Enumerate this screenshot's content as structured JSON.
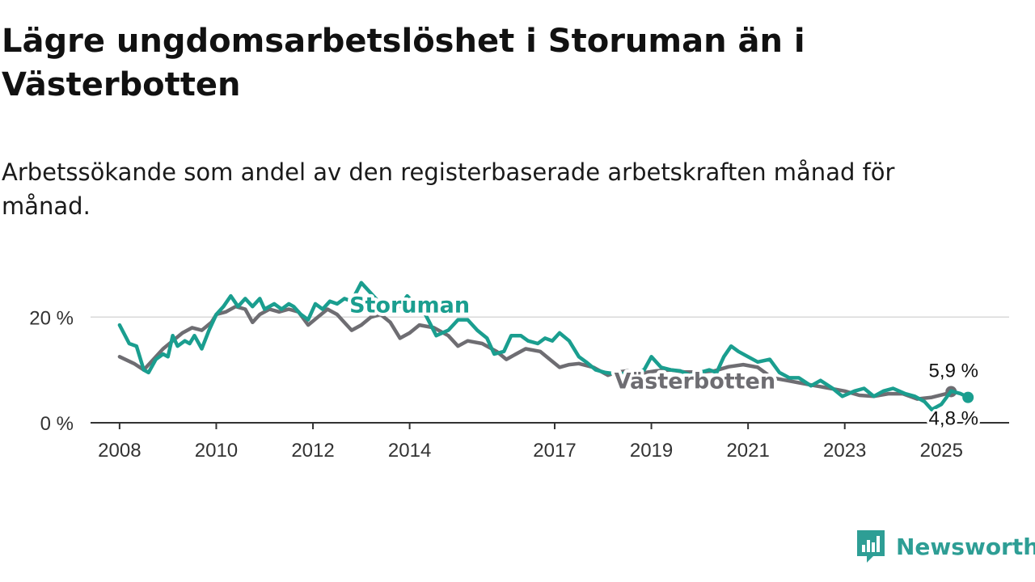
{
  "title": "Lägre ungdomsarbetslöshet i Storuman än i Västerbotten",
  "subtitle": "Arbetssökande som andel av den registerbaserade arbetskraften månad för månad.",
  "brand": {
    "name": "Newsworthy",
    "icon": "newsworthy-logo-icon",
    "color": "#2e9e95"
  },
  "chart_data": {
    "type": "line",
    "title": "Lägre ungdomsarbetslöshet i Storuman än i Västerbotten",
    "subtitle": "Arbetssökande som andel av den registerbaserade arbetskraften månad för månad.",
    "x_ticks": [
      {
        "year": 2008,
        "label": "2008"
      },
      {
        "year": 2010,
        "label": "2010"
      },
      {
        "year": 2012,
        "label": "2012"
      },
      {
        "year": 2014,
        "label": "2014"
      },
      {
        "year": 2017,
        "label": "2017"
      },
      {
        "year": 2019,
        "label": "2019"
      },
      {
        "year": 2021,
        "label": "2021"
      },
      {
        "year": 2023,
        "label": "2023"
      },
      {
        "year": 2025,
        "label": "2025"
      }
    ],
    "y_ticks": [
      {
        "value": 0,
        "label": "0 %"
      },
      {
        "value": 20,
        "label": "20 %"
      }
    ],
    "xlim": [
      2007.4,
      2026.4
    ],
    "ylim": [
      0,
      28
    ],
    "grid": true,
    "series": [
      {
        "name": "Västerbotten",
        "color": "#6e6d72",
        "end_label": "5,9 %",
        "points": [
          [
            2008.0,
            12.5
          ],
          [
            2008.3,
            11.2
          ],
          [
            2008.5,
            10.0
          ],
          [
            2008.7,
            12.0
          ],
          [
            2008.9,
            14.0
          ],
          [
            2009.1,
            15.5
          ],
          [
            2009.3,
            17.0
          ],
          [
            2009.5,
            18.0
          ],
          [
            2009.7,
            17.5
          ],
          [
            2009.9,
            19.0
          ],
          [
            2010.0,
            20.5
          ],
          [
            2010.2,
            21.0
          ],
          [
            2010.4,
            22.0
          ],
          [
            2010.6,
            21.5
          ],
          [
            2010.75,
            19.0
          ],
          [
            2010.9,
            20.5
          ],
          [
            2011.1,
            21.5
          ],
          [
            2011.3,
            21.0
          ],
          [
            2011.5,
            21.5
          ],
          [
            2011.7,
            21.0
          ],
          [
            2011.9,
            18.5
          ],
          [
            2012.1,
            20.0
          ],
          [
            2012.3,
            21.5
          ],
          [
            2012.5,
            20.5
          ],
          [
            2012.6,
            19.5
          ],
          [
            2012.8,
            17.5
          ],
          [
            2013.0,
            18.5
          ],
          [
            2013.2,
            20.0
          ],
          [
            2013.4,
            20.5
          ],
          [
            2013.6,
            19.0
          ],
          [
            2013.8,
            16.0
          ],
          [
            2014.0,
            17.0
          ],
          [
            2014.2,
            18.5
          ],
          [
            2014.5,
            18.0
          ],
          [
            2014.8,
            16.5
          ],
          [
            2015.0,
            14.5
          ],
          [
            2015.2,
            15.5
          ],
          [
            2015.5,
            15.0
          ],
          [
            2015.8,
            13.5
          ],
          [
            2016.0,
            12.0
          ],
          [
            2016.2,
            13.0
          ],
          [
            2016.4,
            14.0
          ],
          [
            2016.7,
            13.5
          ],
          [
            2016.9,
            12.0
          ],
          [
            2017.1,
            10.5
          ],
          [
            2017.3,
            11.0
          ],
          [
            2017.5,
            11.2
          ],
          [
            2017.8,
            10.5
          ],
          [
            2018.1,
            9.0
          ],
          [
            2018.3,
            9.6
          ],
          [
            2018.5,
            9.8
          ],
          [
            2018.8,
            9.4
          ],
          [
            2019.1,
            9.8
          ],
          [
            2019.4,
            10.0
          ],
          [
            2019.7,
            9.6
          ],
          [
            2020.0,
            9.6
          ],
          [
            2020.3,
            9.8
          ],
          [
            2020.6,
            10.6
          ],
          [
            2020.9,
            11.0
          ],
          [
            2021.2,
            10.5
          ],
          [
            2021.5,
            8.5
          ],
          [
            2021.8,
            8.0
          ],
          [
            2022.1,
            7.5
          ],
          [
            2022.4,
            7.0
          ],
          [
            2022.7,
            6.5
          ],
          [
            2023.0,
            6.0
          ],
          [
            2023.3,
            5.2
          ],
          [
            2023.6,
            5.0
          ],
          [
            2023.9,
            5.5
          ],
          [
            2024.2,
            5.5
          ],
          [
            2024.5,
            4.5
          ],
          [
            2024.8,
            4.8
          ],
          [
            2025.1,
            5.5
          ],
          [
            2025.2,
            5.9
          ]
        ]
      },
      {
        "name": "Storuman",
        "color": "#1a9e8f",
        "end_label": "4,8 %",
        "points": [
          [
            2008.0,
            18.5
          ],
          [
            2008.2,
            15.0
          ],
          [
            2008.35,
            14.5
          ],
          [
            2008.5,
            10.0
          ],
          [
            2008.6,
            9.5
          ],
          [
            2008.75,
            12.0
          ],
          [
            2008.9,
            13.0
          ],
          [
            2009.0,
            12.5
          ],
          [
            2009.1,
            16.5
          ],
          [
            2009.2,
            14.5
          ],
          [
            2009.35,
            15.5
          ],
          [
            2009.45,
            15.0
          ],
          [
            2009.55,
            16.5
          ],
          [
            2009.7,
            14.0
          ],
          [
            2009.85,
            17.5
          ],
          [
            2010.0,
            20.5
          ],
          [
            2010.15,
            22.0
          ],
          [
            2010.3,
            24.0
          ],
          [
            2010.45,
            22.0
          ],
          [
            2010.6,
            23.5
          ],
          [
            2010.75,
            22.0
          ],
          [
            2010.9,
            23.5
          ],
          [
            2011.0,
            21.5
          ],
          [
            2011.2,
            22.5
          ],
          [
            2011.35,
            21.5
          ],
          [
            2011.5,
            22.5
          ],
          [
            2011.6,
            22.0
          ],
          [
            2011.75,
            20.5
          ],
          [
            2011.9,
            19.5
          ],
          [
            2012.05,
            22.5
          ],
          [
            2012.2,
            21.5
          ],
          [
            2012.35,
            23.0
          ],
          [
            2012.5,
            22.5
          ],
          [
            2012.65,
            23.5
          ],
          [
            2012.8,
            23.0
          ],
          [
            2013.0,
            26.5
          ],
          [
            2013.2,
            24.5
          ],
          [
            2013.4,
            22.5
          ],
          [
            2013.6,
            23.0
          ],
          [
            2013.8,
            22.0
          ],
          [
            2013.95,
            24.0
          ],
          [
            2014.1,
            22.5
          ],
          [
            2014.3,
            21.0
          ],
          [
            2014.55,
            16.5
          ],
          [
            2014.8,
            17.5
          ],
          [
            2015.0,
            19.5
          ],
          [
            2015.2,
            19.5
          ],
          [
            2015.4,
            17.5
          ],
          [
            2015.6,
            16.0
          ],
          [
            2015.75,
            13.0
          ],
          [
            2015.95,
            13.5
          ],
          [
            2016.1,
            16.5
          ],
          [
            2016.3,
            16.5
          ],
          [
            2016.45,
            15.5
          ],
          [
            2016.65,
            15.0
          ],
          [
            2016.8,
            16.0
          ],
          [
            2016.95,
            15.5
          ],
          [
            2017.1,
            17.0
          ],
          [
            2017.3,
            15.5
          ],
          [
            2017.5,
            12.5
          ],
          [
            2017.65,
            11.5
          ],
          [
            2017.85,
            10.0
          ],
          [
            2018.05,
            9.5
          ],
          [
            2018.3,
            9.2
          ],
          [
            2018.6,
            9.5
          ],
          [
            2018.85,
            10.0
          ],
          [
            2019.0,
            12.5
          ],
          [
            2019.2,
            10.5
          ],
          [
            2019.4,
            10.0
          ],
          [
            2019.6,
            9.8
          ],
          [
            2019.8,
            9.0
          ],
          [
            2020.0,
            9.5
          ],
          [
            2020.2,
            10.0
          ],
          [
            2020.35,
            9.5
          ],
          [
            2020.5,
            12.5
          ],
          [
            2020.65,
            14.5
          ],
          [
            2020.8,
            13.5
          ],
          [
            2021.0,
            12.5
          ],
          [
            2021.2,
            11.5
          ],
          [
            2021.45,
            12.0
          ],
          [
            2021.65,
            9.5
          ],
          [
            2021.85,
            8.5
          ],
          [
            2022.05,
            8.5
          ],
          [
            2022.3,
            7.0
          ],
          [
            2022.5,
            8.0
          ],
          [
            2022.75,
            6.5
          ],
          [
            2022.95,
            5.0
          ],
          [
            2023.2,
            6.0
          ],
          [
            2023.4,
            6.5
          ],
          [
            2023.6,
            5.0
          ],
          [
            2023.8,
            6.0
          ],
          [
            2024.0,
            6.5
          ],
          [
            2024.25,
            5.5
          ],
          [
            2024.45,
            5.0
          ],
          [
            2024.65,
            4.0
          ],
          [
            2024.8,
            2.5
          ],
          [
            2025.0,
            3.5
          ],
          [
            2025.2,
            6.0
          ],
          [
            2025.4,
            5.5
          ],
          [
            2025.55,
            4.8
          ]
        ]
      }
    ]
  }
}
